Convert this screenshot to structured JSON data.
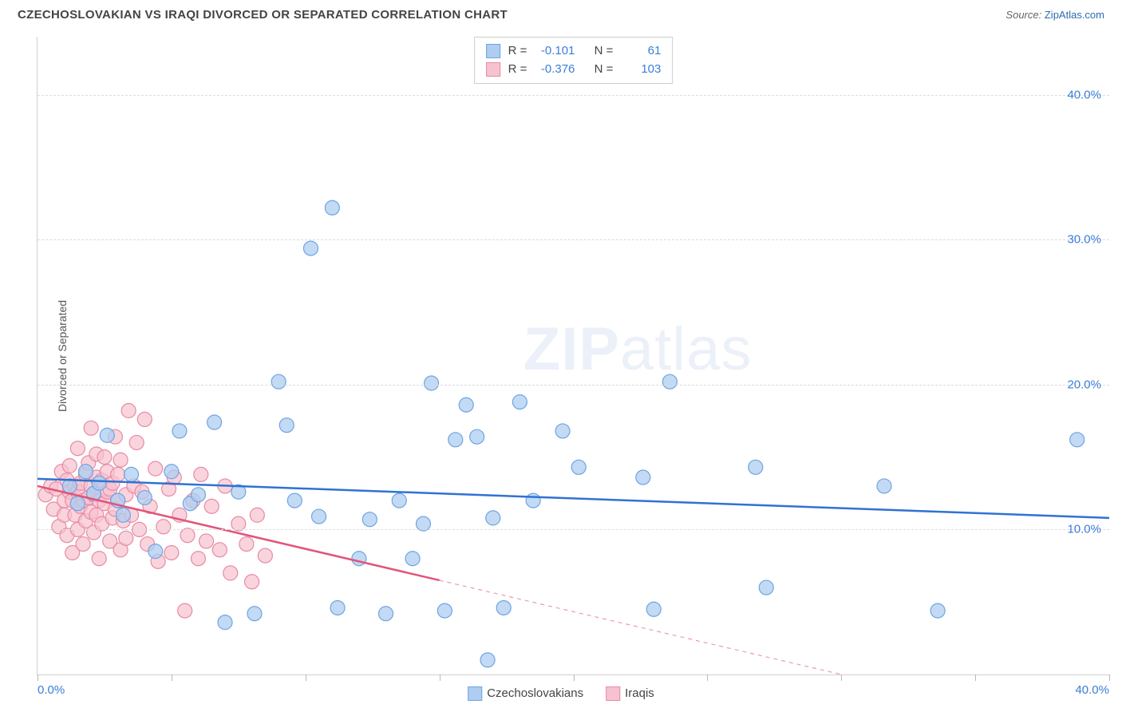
{
  "title": "CZECHOSLOVAKIAN VS IRAQI DIVORCED OR SEPARATED CORRELATION CHART",
  "source_label": "Source:",
  "source_link": "ZipAtlas.com",
  "y_axis_label": "Divorced or Separated",
  "watermark_a": "ZIP",
  "watermark_b": "atlas",
  "chart": {
    "type": "scatter",
    "xlim": [
      0,
      40
    ],
    "ylim": [
      0,
      44
    ],
    "y_gridlines": [
      10,
      20,
      30,
      40
    ],
    "y_tick_labels": [
      "10.0%",
      "20.0%",
      "30.0%",
      "40.0%"
    ],
    "x_ticks": [
      0,
      5,
      10,
      15,
      20,
      25,
      30,
      35,
      40
    ],
    "x_tick_labels": {
      "0": "0.0%",
      "40": "40.0%"
    },
    "background_color": "#ffffff",
    "grid_color": "#dcdcdc",
    "axis_color": "#d0d0d0",
    "tick_label_color": "#3b7dd8",
    "series": [
      {
        "key": "czech",
        "label": "Czechoslovakians",
        "marker_color": "#aecdf0",
        "marker_stroke": "#6fa4e2",
        "line_color": "#2f72d4",
        "line_width": 2.5,
        "marker_radius": 9,
        "marker_opacity": 0.75,
        "r_value": "-0.101",
        "n_value": "61",
        "trend": {
          "from": [
            0,
            13.5
          ],
          "to": [
            40,
            10.8
          ],
          "solid_until_x": 40
        },
        "points": [
          [
            1.2,
            13
          ],
          [
            1.5,
            11.8
          ],
          [
            1.8,
            14
          ],
          [
            2.1,
            12.5
          ],
          [
            2.3,
            13.2
          ],
          [
            2.6,
            16.5
          ],
          [
            3.0,
            12
          ],
          [
            3.2,
            11
          ],
          [
            3.5,
            13.8
          ],
          [
            4.0,
            12.2
          ],
          [
            4.4,
            8.5
          ],
          [
            5.0,
            14
          ],
          [
            5.3,
            16.8
          ],
          [
            5.7,
            11.8
          ],
          [
            6.0,
            12.4
          ],
          [
            6.6,
            17.4
          ],
          [
            7.0,
            3.6
          ],
          [
            7.5,
            12.6
          ],
          [
            8.1,
            4.2
          ],
          [
            9.0,
            20.2
          ],
          [
            9.3,
            17.2
          ],
          [
            9.6,
            12.0
          ],
          [
            10.2,
            29.4
          ],
          [
            10.5,
            10.9
          ],
          [
            11.0,
            32.2
          ],
          [
            11.2,
            4.6
          ],
          [
            12.0,
            8.0
          ],
          [
            12.4,
            10.7
          ],
          [
            13.0,
            4.2
          ],
          [
            13.5,
            12.0
          ],
          [
            14.0,
            8.0
          ],
          [
            14.4,
            10.4
          ],
          [
            14.7,
            20.1
          ],
          [
            15.2,
            4.4
          ],
          [
            15.6,
            16.2
          ],
          [
            16.0,
            18.6
          ],
          [
            16.4,
            16.4
          ],
          [
            16.8,
            1.0
          ],
          [
            17.0,
            10.8
          ],
          [
            17.4,
            4.6
          ],
          [
            18.0,
            18.8
          ],
          [
            18.5,
            12.0
          ],
          [
            19.6,
            16.8
          ],
          [
            20.2,
            14.3
          ],
          [
            22.6,
            13.6
          ],
          [
            23.0,
            4.5
          ],
          [
            23.6,
            20.2
          ],
          [
            26.8,
            14.3
          ],
          [
            27.2,
            6.0
          ],
          [
            31.6,
            13.0
          ],
          [
            33.6,
            4.4
          ],
          [
            38.8,
            16.2
          ]
        ]
      },
      {
        "key": "iraqi",
        "label": "Iraqis",
        "marker_color": "#f6c2cf",
        "marker_stroke": "#e88aa3",
        "line_color": "#e2547a",
        "line_width": 2.5,
        "marker_radius": 9,
        "marker_opacity": 0.7,
        "r_value": "-0.376",
        "n_value": "103",
        "trend": {
          "from": [
            0,
            13.0
          ],
          "to": [
            30,
            0
          ],
          "solid_until_x": 15
        },
        "points": [
          [
            0.3,
            12.4
          ],
          [
            0.5,
            13.0
          ],
          [
            0.6,
            11.4
          ],
          [
            0.7,
            12.8
          ],
          [
            0.8,
            10.2
          ],
          [
            0.9,
            14.0
          ],
          [
            1.0,
            12.0
          ],
          [
            1.0,
            11.0
          ],
          [
            1.1,
            13.4
          ],
          [
            1.1,
            9.6
          ],
          [
            1.2,
            12.6
          ],
          [
            1.2,
            14.4
          ],
          [
            1.3,
            12.0
          ],
          [
            1.3,
            8.4
          ],
          [
            1.4,
            13.0
          ],
          [
            1.4,
            11.0
          ],
          [
            1.5,
            12.6
          ],
          [
            1.5,
            15.6
          ],
          [
            1.5,
            10.0
          ],
          [
            1.6,
            13.2
          ],
          [
            1.6,
            11.6
          ],
          [
            1.7,
            12.0
          ],
          [
            1.7,
            9.0
          ],
          [
            1.8,
            13.8
          ],
          [
            1.8,
            10.6
          ],
          [
            1.9,
            12.2
          ],
          [
            1.9,
            14.6
          ],
          [
            2.0,
            11.2
          ],
          [
            2.0,
            13.0
          ],
          [
            2.0,
            17.0
          ],
          [
            2.1,
            12.4
          ],
          [
            2.1,
            9.8
          ],
          [
            2.2,
            13.6
          ],
          [
            2.2,
            11.0
          ],
          [
            2.2,
            15.2
          ],
          [
            2.3,
            12.0
          ],
          [
            2.3,
            8.0
          ],
          [
            2.4,
            13.4
          ],
          [
            2.4,
            10.4
          ],
          [
            2.5,
            15.0
          ],
          [
            2.5,
            11.8
          ],
          [
            2.6,
            12.6
          ],
          [
            2.6,
            14.0
          ],
          [
            2.7,
            9.2
          ],
          [
            2.7,
            12.8
          ],
          [
            2.8,
            10.8
          ],
          [
            2.8,
            13.2
          ],
          [
            2.9,
            16.4
          ],
          [
            2.9,
            11.4
          ],
          [
            3.0,
            12.0
          ],
          [
            3.0,
            13.8
          ],
          [
            3.1,
            8.6
          ],
          [
            3.1,
            14.8
          ],
          [
            3.2,
            10.6
          ],
          [
            3.3,
            12.4
          ],
          [
            3.3,
            9.4
          ],
          [
            3.4,
            18.2
          ],
          [
            3.5,
            11.0
          ],
          [
            3.6,
            13.0
          ],
          [
            3.7,
            16.0
          ],
          [
            3.8,
            10.0
          ],
          [
            3.9,
            12.6
          ],
          [
            4.0,
            17.6
          ],
          [
            4.1,
            9.0
          ],
          [
            4.2,
            11.6
          ],
          [
            4.4,
            14.2
          ],
          [
            4.5,
            7.8
          ],
          [
            4.7,
            10.2
          ],
          [
            4.9,
            12.8
          ],
          [
            5.0,
            8.4
          ],
          [
            5.1,
            13.6
          ],
          [
            5.3,
            11.0
          ],
          [
            5.5,
            4.4
          ],
          [
            5.6,
            9.6
          ],
          [
            5.8,
            12.0
          ],
          [
            6.0,
            8.0
          ],
          [
            6.1,
            13.8
          ],
          [
            6.3,
            9.2
          ],
          [
            6.5,
            11.6
          ],
          [
            6.8,
            8.6
          ],
          [
            7.0,
            13.0
          ],
          [
            7.2,
            7.0
          ],
          [
            7.5,
            10.4
          ],
          [
            7.8,
            9.0
          ],
          [
            8.0,
            6.4
          ],
          [
            8.2,
            11.0
          ],
          [
            8.5,
            8.2
          ]
        ]
      }
    ]
  },
  "legend_stats_labels": {
    "r": "R =",
    "n": "N ="
  }
}
